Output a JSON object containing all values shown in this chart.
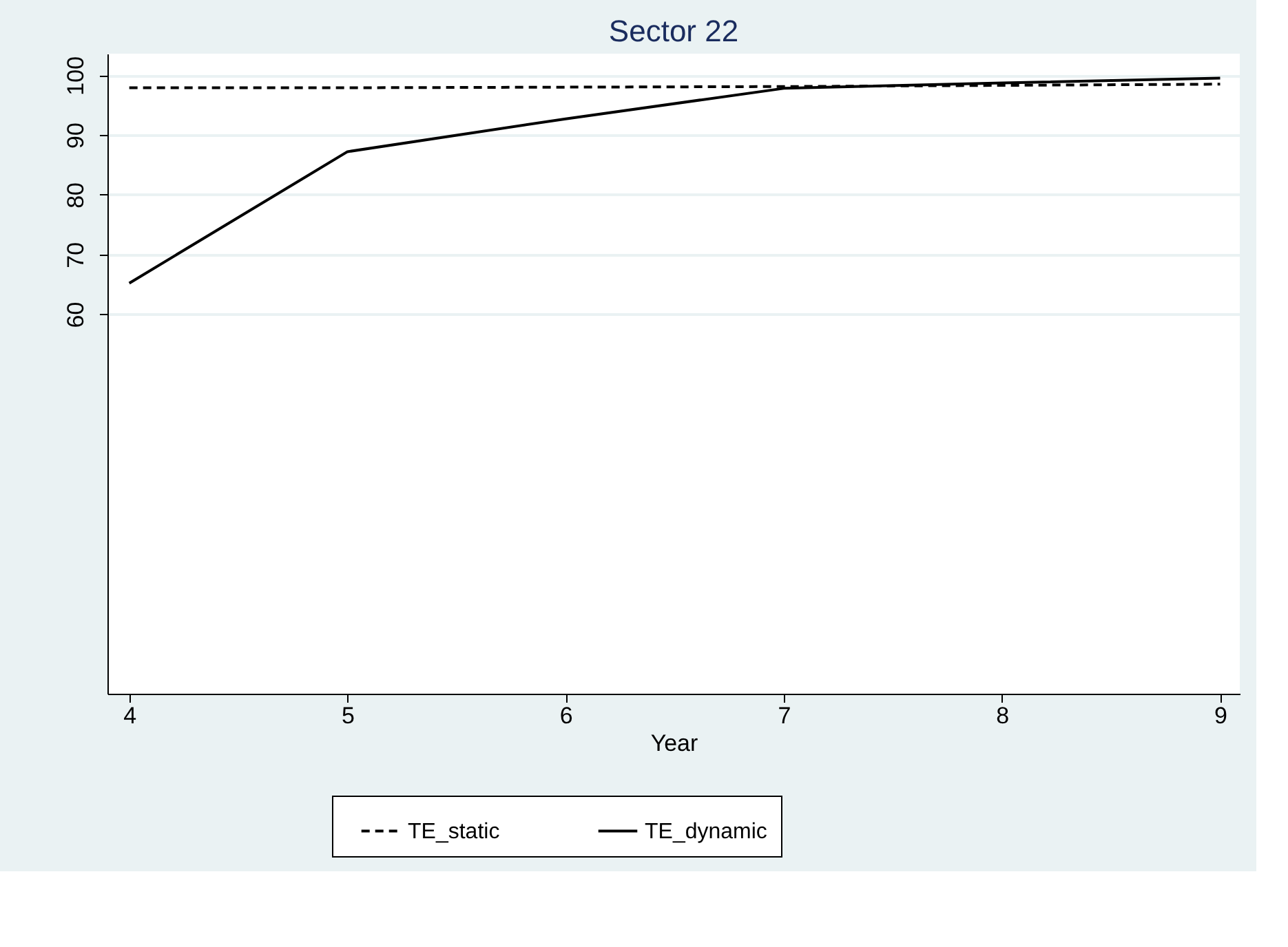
{
  "chart_data": {
    "type": "line",
    "title": "Sector 22",
    "xlabel": "Year",
    "x": [
      4,
      5,
      6,
      7,
      8,
      9
    ],
    "series": [
      {
        "name": "TE_static",
        "color": "#000000",
        "line_style": "dashed",
        "values": [
          97.9,
          97.9,
          98.0,
          98.1,
          98.3,
          98.5
        ]
      },
      {
        "name": "TE_dynamic",
        "color": "#000000",
        "line_style": "solid",
        "values": [
          65.2,
          87.2,
          92.7,
          97.8,
          98.7,
          99.5
        ]
      }
    ],
    "xlim": [
      3.9,
      9.09
    ],
    "xticks": [
      4,
      5,
      6,
      7,
      8,
      9
    ],
    "ylim": [
      -3.5,
      103.6
    ],
    "yticks": [
      60,
      70,
      80,
      90,
      100
    ],
    "grid": "y",
    "legend": "bottom",
    "marker": "none"
  }
}
